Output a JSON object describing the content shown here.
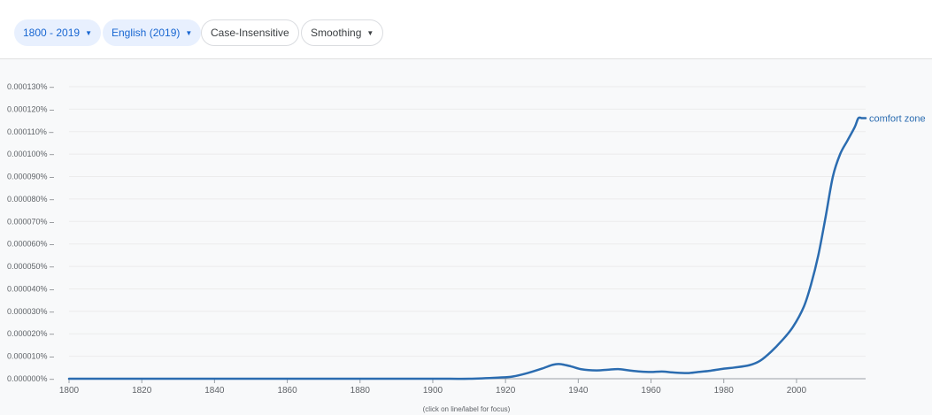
{
  "toolbar": {
    "year_range": "1800 - 2019",
    "corpus": "English (2019)",
    "case": "Case-Insensitive",
    "smoothing": "Smoothing"
  },
  "footer_hint": "(click on line/label for focus)",
  "colors": {
    "line": "#2b6cb0",
    "chip_active_bg": "#e8f0fe",
    "chip_active_text": "#1967d2",
    "plot_bg": "#f8f9fa"
  },
  "chart_data": {
    "type": "line",
    "title": "",
    "xlabel": "",
    "ylabel": "",
    "xlim": [
      1800,
      2019
    ],
    "ylim": [
      0,
      0.00013
    ],
    "x_ticks": [
      1800,
      1820,
      1840,
      1860,
      1880,
      1900,
      1920,
      1940,
      1960,
      1980,
      2000
    ],
    "y_ticks": [
      {
        "value": 0.0,
        "label": "0.000000%"
      },
      {
        "value": 1e-05,
        "label": "0.000010%"
      },
      {
        "value": 2e-05,
        "label": "0.000020%"
      },
      {
        "value": 3e-05,
        "label": "0.000030%"
      },
      {
        "value": 4e-05,
        "label": "0.000040%"
      },
      {
        "value": 5e-05,
        "label": "0.000050%"
      },
      {
        "value": 6e-05,
        "label": "0.000060%"
      },
      {
        "value": 7e-05,
        "label": "0.000070%"
      },
      {
        "value": 8e-05,
        "label": "0.000080%"
      },
      {
        "value": 9e-05,
        "label": "0.000090%"
      },
      {
        "value": 0.0001,
        "label": "0.000100%"
      },
      {
        "value": 0.00011,
        "label": "0.000110%"
      },
      {
        "value": 0.00012,
        "label": "0.000120%"
      },
      {
        "value": 0.00013,
        "label": "0.000130%"
      }
    ],
    "grid": true,
    "series": [
      {
        "name": "comfort zone",
        "x": [
          1800,
          1820,
          1840,
          1860,
          1880,
          1900,
          1910,
          1918,
          1922,
          1926,
          1930,
          1933,
          1935,
          1938,
          1941,
          1945,
          1948,
          1951,
          1954,
          1957,
          1960,
          1963,
          1966,
          1970,
          1973,
          1976,
          1980,
          1983,
          1987,
          1990,
          1993,
          1996,
          1999,
          2002,
          2004,
          2006,
          2008,
          2010,
          2012,
          2014,
          2016,
          2017,
          2018,
          2019
        ],
        "y": [
          0.0,
          0.0,
          0.0,
          0.0,
          0.0,
          0.0,
          0.0,
          5e-07,
          1e-06,
          2.5e-06,
          4.5e-06,
          6.2e-06,
          6.5e-06,
          5.5e-06,
          4.2e-06,
          3.7e-06,
          4e-06,
          4.3e-06,
          3.7e-06,
          3.2e-06,
          3e-06,
          3.2e-06,
          2.8e-06,
          2.5e-06,
          3e-06,
          3.5e-06,
          4.5e-06,
          5e-06,
          6e-06,
          8e-06,
          1.2e-05,
          1.7e-05,
          2.3e-05,
          3.2e-05,
          4.2e-05,
          5.5e-05,
          7.2e-05,
          9e-05,
          0.0001,
          0.000106,
          0.000112,
          0.000116,
          0.000116,
          0.000116
        ]
      }
    ]
  }
}
